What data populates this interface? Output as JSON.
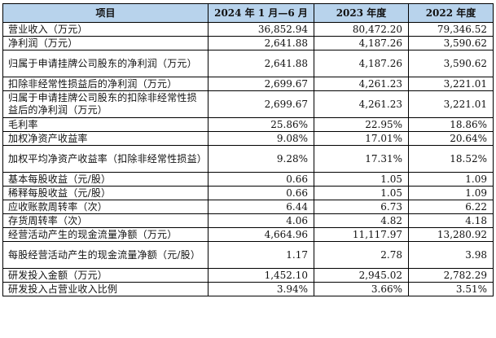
{
  "table": {
    "headers": [
      "项目",
      "2024 年 1 月—6 月",
      "2023 年度",
      "2022 年度"
    ],
    "rows": [
      {
        "label": "营业收入（万元）",
        "values": [
          "36,852.94",
          "80,472.20",
          "79,346.52"
        ],
        "lines": 1
      },
      {
        "label": "净利润（万元）",
        "values": [
          "2,641.88",
          "4,187.26",
          "3,590.62"
        ],
        "lines": 1
      },
      {
        "label": "归属于申请挂牌公司股东的净利润（万元）",
        "values": [
          "2,641.88",
          "4,187.26",
          "3,590.62"
        ],
        "lines": 2
      },
      {
        "label": "扣除非经常性损益后的净利润（万元）",
        "values": [
          "2,699.67",
          "4,261.23",
          "3,221.01"
        ],
        "lines": 1
      },
      {
        "label": "归属于申请挂牌公司股东的扣除非经常性损益后的净利润（万元）",
        "values": [
          "2,699.67",
          "4,261.23",
          "3,221.01"
        ],
        "lines": 2
      },
      {
        "label": "毛利率",
        "values": [
          "25.86%",
          "22.95%",
          "18.86%"
        ],
        "lines": 1
      },
      {
        "label": "加权净资产收益率",
        "values": [
          "9.08%",
          "17.01%",
          "20.64%"
        ],
        "lines": 1
      },
      {
        "label": "加权平均净资产收益率（扣除非经常性损益）",
        "values": [
          "9.28%",
          "17.31%",
          "18.52%"
        ],
        "lines": 2
      },
      {
        "label": "基本每股收益（元/股）",
        "values": [
          "0.66",
          "1.05",
          "1.09"
        ],
        "lines": 1
      },
      {
        "label": "稀释每股收益（元/股）",
        "values": [
          "0.66",
          "1.05",
          "1.09"
        ],
        "lines": 1
      },
      {
        "label": "应收账款周转率（次）",
        "values": [
          "6.44",
          "6.73",
          "6.22"
        ],
        "lines": 1
      },
      {
        "label": "存货周转率（次）",
        "values": [
          "4.06",
          "4.82",
          "4.18"
        ],
        "lines": 1
      },
      {
        "label": "经营活动产生的现金流量净额（万元）",
        "values": [
          "4,664.96",
          "11,117.97",
          "13,280.92"
        ],
        "lines": 1
      },
      {
        "label": "每股经营活动产生的现金流量净额（元/股）",
        "values": [
          "1.17",
          "2.78",
          "3.98"
        ],
        "lines": 2
      },
      {
        "label": "研发投入金额（万元）",
        "values": [
          "1,452.10",
          "2,945.02",
          "2,782.29"
        ],
        "lines": 1
      },
      {
        "label": "研发投入占营业收入比例",
        "values": [
          "3.94%",
          "3.66%",
          "3.51%"
        ],
        "lines": 1
      }
    ]
  }
}
